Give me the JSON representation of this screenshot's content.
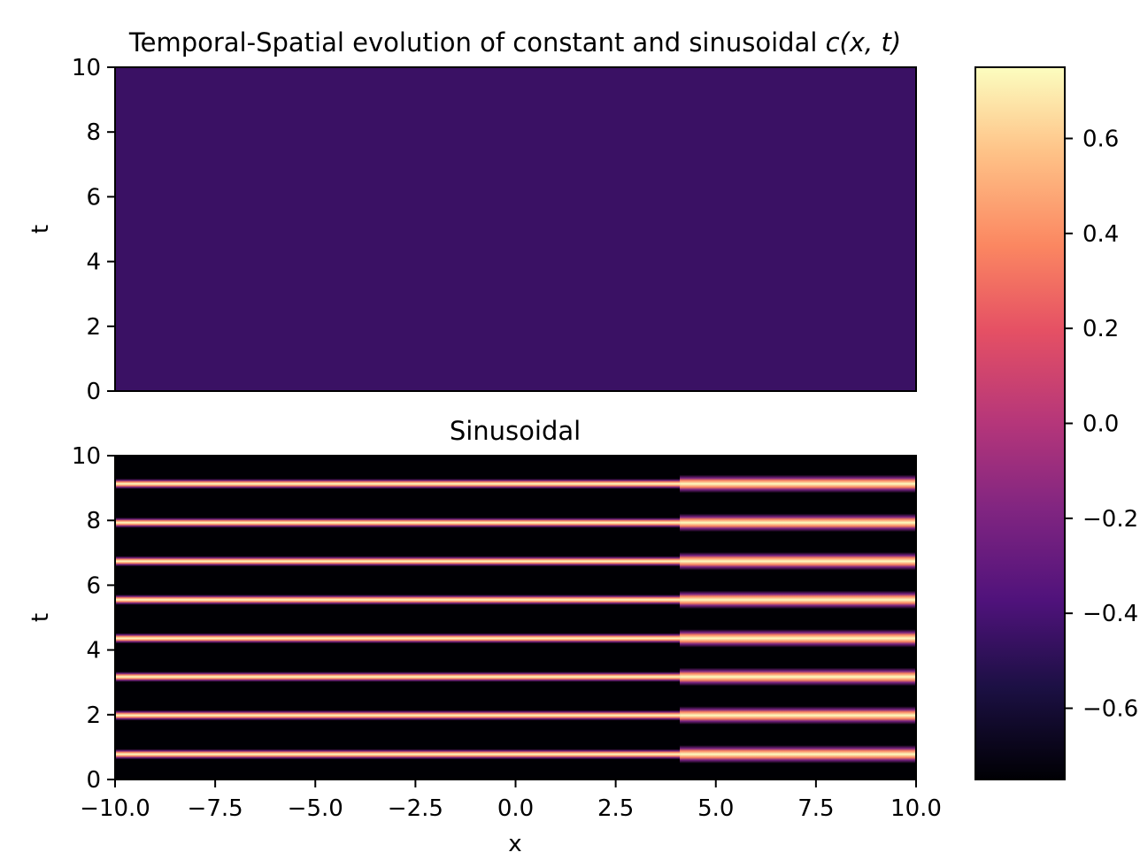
{
  "chart_data": [
    {
      "type": "heatmap",
      "panel": "top",
      "title_plain": "Temporal-Spatial evolution of constant and sinusoidal ",
      "title_math": "c(x, t)",
      "xlim": [
        -10,
        10
      ],
      "ylim": [
        0,
        10
      ],
      "xlabel": "",
      "ylabel": "t",
      "x_axis_visible": false,
      "yticks": [
        0,
        2,
        4,
        6,
        8,
        10
      ],
      "ytick_labels": [
        "0",
        "2",
        "4",
        "6",
        "8",
        "10"
      ],
      "field": "constant",
      "constant_value": -0.45
    },
    {
      "type": "heatmap",
      "panel": "bottom",
      "title": "Sinusoidal",
      "xlim": [
        -10,
        10
      ],
      "ylim": [
        0,
        10
      ],
      "xlabel": "x",
      "ylabel": "t",
      "xticks": [
        -10,
        -7.5,
        -5,
        -2.5,
        0,
        2.5,
        5,
        7.5,
        10
      ],
      "xtick_labels": [
        "−10.0",
        "−7.5",
        "−5.0",
        "−2.5",
        "0.0",
        "2.5",
        "5.0",
        "7.5",
        "10.0"
      ],
      "yticks": [
        0,
        2,
        4,
        6,
        8,
        10
      ],
      "ytick_labels": [
        "0",
        "2",
        "4",
        "6",
        "8",
        "10"
      ],
      "field": "banded",
      "background_value": -0.75,
      "band_value": 0.75,
      "band_centers_t": [
        0.78,
        1.98,
        3.17,
        4.36,
        5.55,
        6.74,
        7.93,
        9.13
      ],
      "band_split_x": 4.1,
      "band_halfwidth_left_t": 0.16,
      "band_halfwidth_right_t": 0.28
    },
    {
      "type": "colorbar",
      "colormap": "magma",
      "vmin": -0.75,
      "vmax": 0.75,
      "ticks": [
        -0.6,
        -0.4,
        -0.2,
        0.0,
        0.2,
        0.4,
        0.6
      ],
      "tick_labels": [
        "−0.6",
        "−0.4",
        "−0.2",
        "0.0",
        "0.2",
        "0.4",
        "0.6"
      ],
      "magma_stops": [
        [
          0.0,
          "#000004"
        ],
        [
          0.13,
          "#1c1044"
        ],
        [
          0.25,
          "#4f127b"
        ],
        [
          0.38,
          "#812581"
        ],
        [
          0.5,
          "#b5367a"
        ],
        [
          0.63,
          "#e55064"
        ],
        [
          0.75,
          "#fb8761"
        ],
        [
          0.88,
          "#fec287"
        ],
        [
          1.0,
          "#fcfdbf"
        ]
      ]
    }
  ]
}
